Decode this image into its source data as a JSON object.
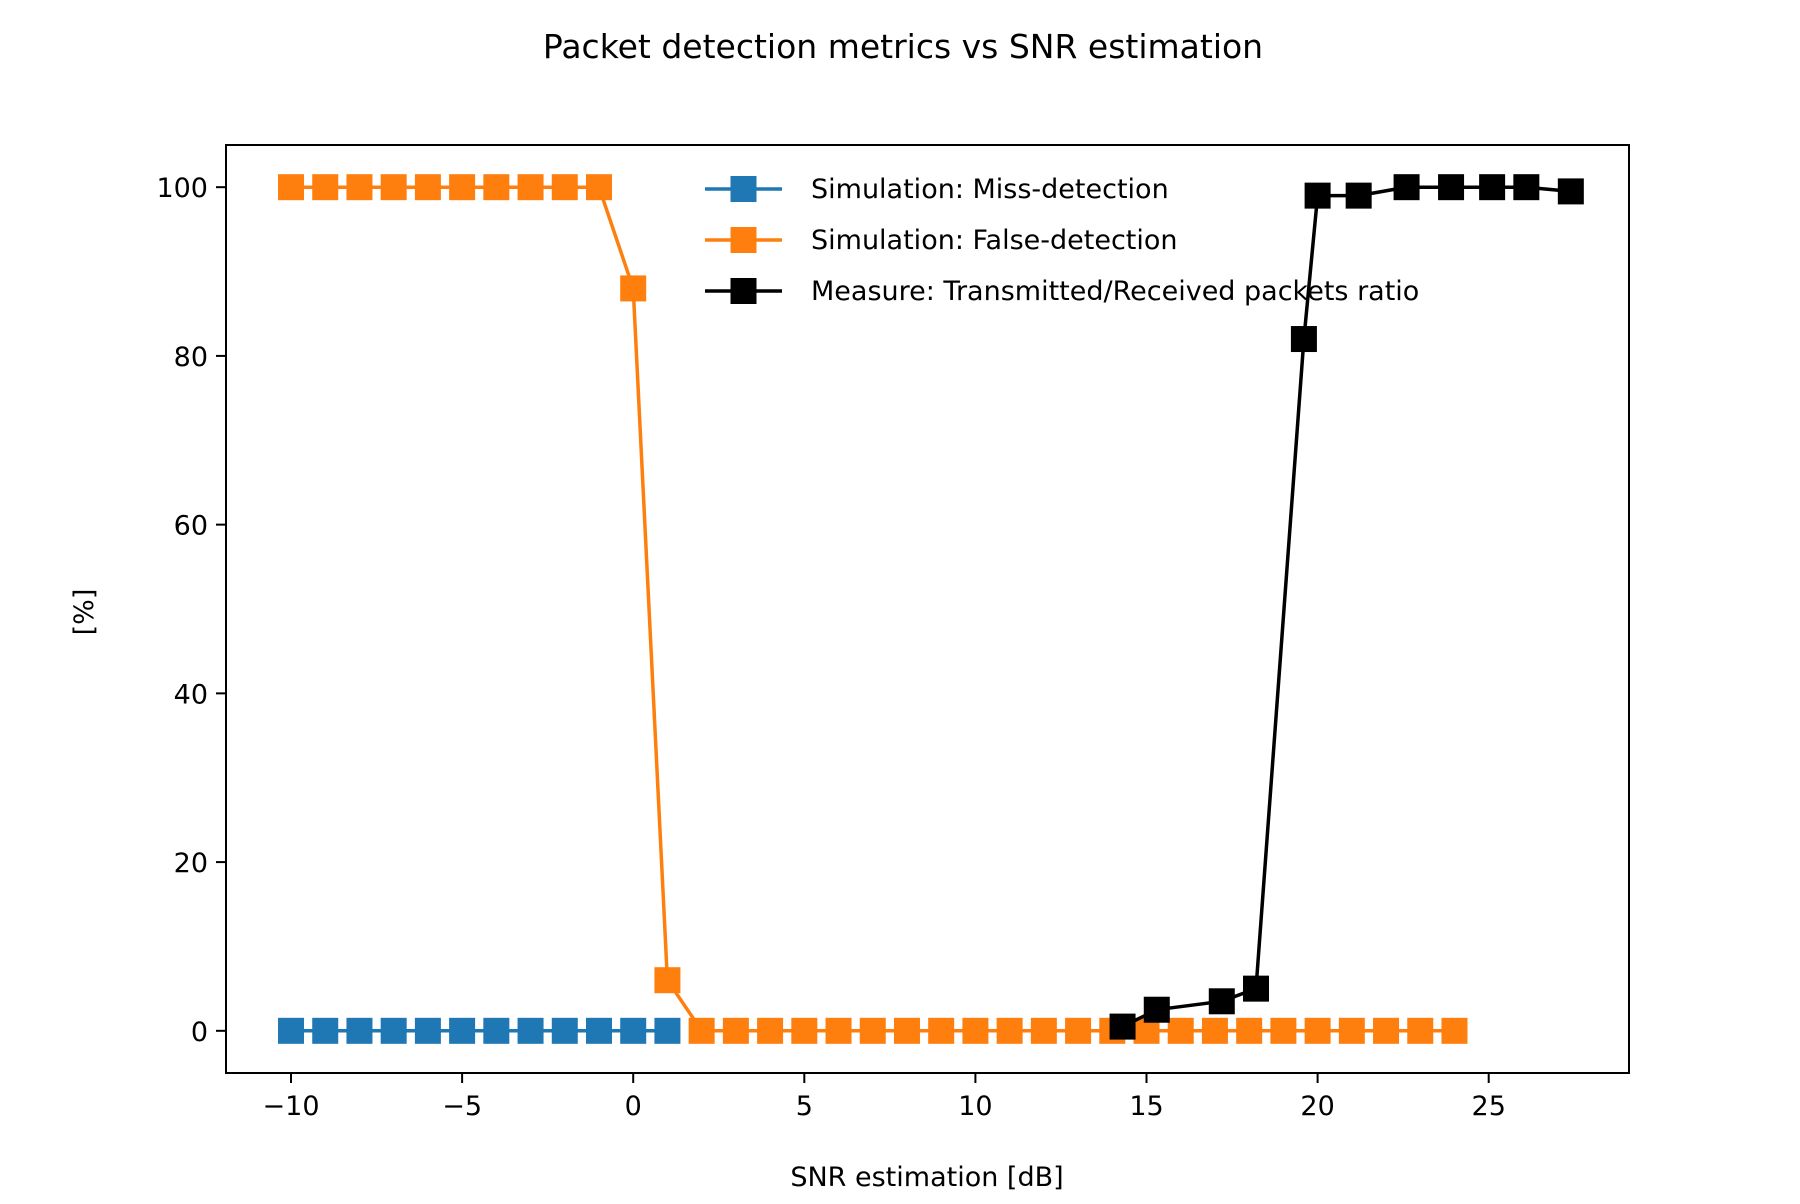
{
  "chart_data": {
    "type": "line",
    "title": "Packet detection metrics vs SNR estimation",
    "xlabel": "SNR estimation [dB]",
    "ylabel": "[%]",
    "xlim": [
      -11.9,
      29.1
    ],
    "ylim": [
      -5,
      105
    ],
    "xticks": [
      -10,
      -5,
      0,
      5,
      10,
      15,
      20,
      25
    ],
    "xtick_labels": [
      "−10",
      "−5",
      "0",
      "5",
      "10",
      "15",
      "20",
      "25"
    ],
    "yticks": [
      0,
      20,
      40,
      60,
      80,
      100
    ],
    "ytick_labels": [
      "0",
      "20",
      "40",
      "60",
      "80",
      "100"
    ],
    "grid": false,
    "legend_position": "top-right",
    "series": [
      {
        "name": "Simulation: Miss-detection",
        "color": "#1f77b4",
        "marker": "square",
        "x": [
          -10,
          -9,
          -8,
          -7,
          -6,
          -5,
          -4,
          -3,
          -2,
          -1,
          0,
          1
        ],
        "y": [
          0,
          0,
          0,
          0,
          0,
          0,
          0,
          0,
          0,
          0,
          0,
          0
        ]
      },
      {
        "name": "Simulation: False-detection",
        "color": "#ff7f0e",
        "marker": "square",
        "x": [
          -10,
          -9,
          -8,
          -7,
          -6,
          -5,
          -4,
          -3,
          -2,
          -1,
          0,
          1,
          2,
          3,
          4,
          5,
          6,
          7,
          8,
          9,
          10,
          11,
          12,
          13,
          14,
          15,
          16,
          17,
          18,
          19,
          20,
          21,
          22,
          23,
          24
        ],
        "y": [
          100,
          100,
          100,
          100,
          100,
          100,
          100,
          100,
          100,
          100,
          88,
          6,
          0,
          0,
          0,
          0,
          0,
          0,
          0,
          0,
          0,
          0,
          0,
          0,
          0,
          0,
          0,
          0,
          0,
          0,
          0,
          0,
          0,
          0,
          0
        ]
      },
      {
        "name": "Measure: Transmitted/Received packets ratio",
        "color": "#000000",
        "marker": "square",
        "x": [
          14.3,
          15.3,
          17.2,
          18.2,
          19.6,
          20.0,
          21.2,
          22.6,
          23.9,
          25.1,
          26.1,
          27.4
        ],
        "y": [
          0.5,
          2.5,
          3.5,
          5,
          82,
          99,
          99,
          100,
          100,
          100,
          100,
          99.5
        ]
      }
    ]
  }
}
